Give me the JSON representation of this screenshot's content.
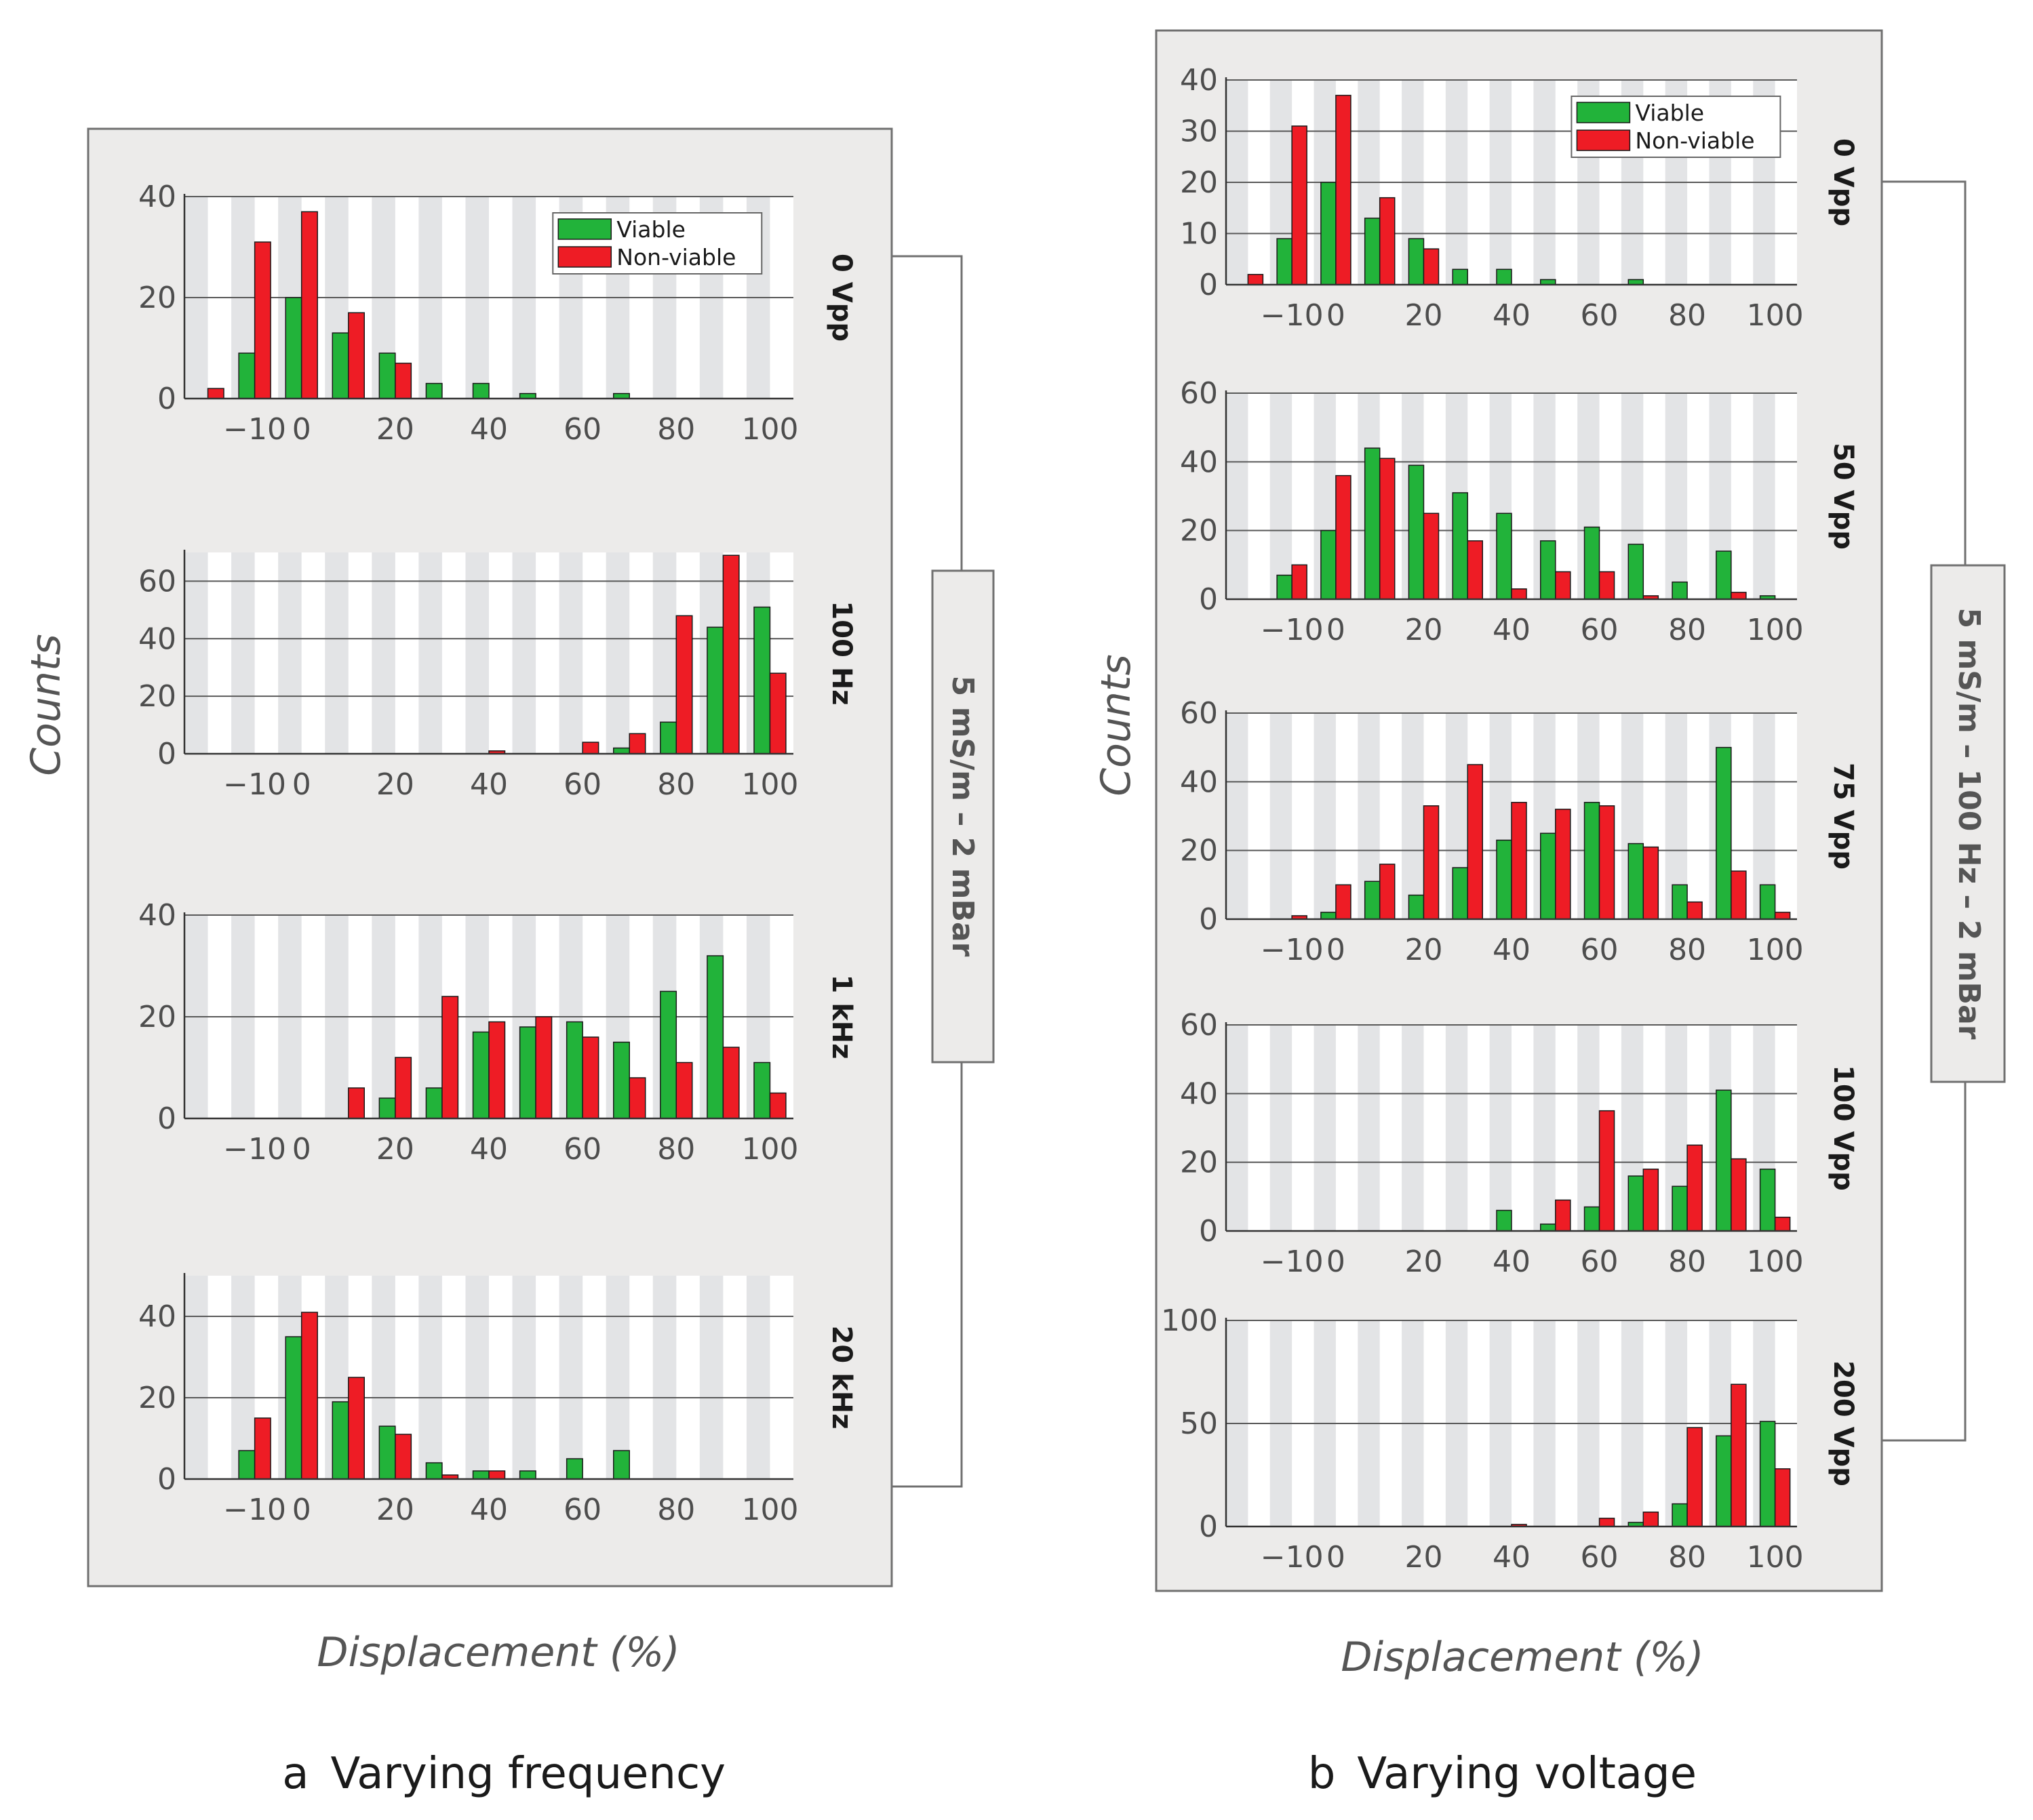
{
  "colors": {
    "viable": "#22b33a",
    "nonviable": "#ee1c25",
    "panel_bg": "#ecebea",
    "plot_bg": "#ffffff",
    "stripe": "#e3e4e6",
    "grid": "#595959",
    "frame": "#707070"
  },
  "legend": {
    "viable": "Viable",
    "nonviable": "Non-viable"
  },
  "x_ticks": [
    "−10",
    "0",
    "20",
    "40",
    "60",
    "80",
    "100"
  ],
  "left_group": {
    "caption_letter": "a",
    "caption": "Varying frequency",
    "y_title": "Counts",
    "x_title": "Displacement (%)",
    "condition": "5 mS/m – 2 mBar"
  },
  "right_group": {
    "caption_letter": "b",
    "caption": "Varying voltage",
    "y_title": "Counts",
    "x_title": "Displacement (%)",
    "condition": "5 mS/m – 100 Hz – 2 mBar"
  },
  "chart_data": [
    {
      "type": "bar",
      "group": "a",
      "title": "0 Vpp",
      "xlabel": "Displacement (%)",
      "ylabel": "Counts",
      "x": [
        -20,
        -10,
        0,
        10,
        20,
        30,
        40,
        50,
        60,
        70,
        80,
        90,
        100
      ],
      "ylim": [
        0,
        40
      ],
      "yticks": [
        0,
        20,
        40
      ],
      "yticks_labels": [
        "0",
        "20",
        "40"
      ],
      "legend": true,
      "series": [
        {
          "name": "Viable",
          "values": [
            0,
            9,
            20,
            13,
            9,
            3,
            3,
            1,
            0,
            1,
            0,
            0,
            0
          ]
        },
        {
          "name": "Non-viable",
          "values": [
            2,
            31,
            37,
            17,
            7,
            0,
            0,
            0,
            0,
            0,
            0,
            0,
            0
          ]
        }
      ]
    },
    {
      "type": "bar",
      "group": "a",
      "title": "100 Hz",
      "xlabel": "Displacement (%)",
      "ylabel": "Counts",
      "x": [
        -20,
        -10,
        0,
        10,
        20,
        30,
        40,
        50,
        60,
        70,
        80,
        90,
        100
      ],
      "ylim": [
        0,
        70
      ],
      "yticks": [
        0,
        20,
        40,
        60
      ],
      "yticks_labels": [
        "0",
        "20",
        "40",
        "60"
      ],
      "legend": false,
      "series": [
        {
          "name": "Viable",
          "values": [
            0,
            0,
            0,
            0,
            0,
            0,
            0,
            0,
            0,
            2,
            11,
            44,
            51
          ]
        },
        {
          "name": "Non-viable",
          "values": [
            0,
            0,
            0,
            0,
            0,
            0,
            1,
            0,
            4,
            7,
            48,
            69,
            28
          ]
        }
      ]
    },
    {
      "type": "bar",
      "group": "a",
      "title": "1 kHz",
      "xlabel": "Displacement (%)",
      "ylabel": "Counts",
      "x": [
        -20,
        -10,
        0,
        10,
        20,
        30,
        40,
        50,
        60,
        70,
        80,
        90,
        100
      ],
      "ylim": [
        0,
        40
      ],
      "yticks": [
        0,
        20,
        40
      ],
      "yticks_labels": [
        "0",
        "20",
        "40"
      ],
      "legend": false,
      "series": [
        {
          "name": "Viable",
          "values": [
            0,
            0,
            0,
            0,
            4,
            6,
            17,
            18,
            19,
            15,
            25,
            32,
            11
          ]
        },
        {
          "name": "Non-viable",
          "values": [
            0,
            0,
            0,
            6,
            12,
            24,
            19,
            20,
            16,
            8,
            11,
            14,
            5
          ]
        }
      ]
    },
    {
      "type": "bar",
      "group": "a",
      "title": "20 kHz",
      "xlabel": "Displacement (%)",
      "ylabel": "Counts",
      "x": [
        -20,
        -10,
        0,
        10,
        20,
        30,
        40,
        50,
        60,
        70,
        80,
        90,
        100
      ],
      "ylim": [
        0,
        50
      ],
      "yticks": [
        0,
        20,
        40
      ],
      "yticks_labels": [
        "0",
        "20",
        "40"
      ],
      "legend": false,
      "series": [
        {
          "name": "Viable",
          "values": [
            0,
            7,
            35,
            19,
            13,
            4,
            2,
            2,
            5,
            7,
            0,
            0,
            0
          ]
        },
        {
          "name": "Non-viable",
          "values": [
            0,
            15,
            41,
            25,
            11,
            1,
            2,
            0,
            0,
            0,
            0,
            0,
            0
          ]
        }
      ]
    },
    {
      "type": "bar",
      "group": "b",
      "title": "0 Vpp",
      "xlabel": "Displacement (%)",
      "ylabel": "Counts",
      "x": [
        -20,
        -10,
        0,
        10,
        20,
        30,
        40,
        50,
        60,
        70,
        80,
        90,
        100
      ],
      "ylim": [
        0,
        40
      ],
      "yticks": [
        0,
        10,
        20,
        30,
        40
      ],
      "yticks_labels": [
        "0",
        "10",
        "20",
        "30",
        "40"
      ],
      "legend": true,
      "series": [
        {
          "name": "Viable",
          "values": [
            0,
            9,
            20,
            13,
            9,
            3,
            3,
            1,
            0,
            1,
            0,
            0,
            0
          ]
        },
        {
          "name": "Non-viable",
          "values": [
            2,
            31,
            37,
            17,
            7,
            0,
            0,
            0,
            0,
            0,
            0,
            0,
            0
          ]
        }
      ]
    },
    {
      "type": "bar",
      "group": "b",
      "title": "50 Vpp",
      "xlabel": "Displacement (%)",
      "ylabel": "Counts",
      "x": [
        -20,
        -10,
        0,
        10,
        20,
        30,
        40,
        50,
        60,
        70,
        80,
        90,
        100
      ],
      "ylim": [
        0,
        60
      ],
      "yticks": [
        0,
        20,
        40,
        60
      ],
      "yticks_labels": [
        "0",
        "20",
        "40",
        "60"
      ],
      "legend": false,
      "series": [
        {
          "name": "Viable",
          "values": [
            0,
            7,
            20,
            44,
            39,
            31,
            25,
            17,
            21,
            16,
            5,
            14,
            1
          ]
        },
        {
          "name": "Non-viable",
          "values": [
            0,
            10,
            36,
            41,
            25,
            17,
            3,
            8,
            8,
            1,
            0,
            2,
            0
          ]
        }
      ]
    },
    {
      "type": "bar",
      "group": "b",
      "title": "75 Vpp",
      "xlabel": "Displacement (%)",
      "ylabel": "Counts",
      "x": [
        -20,
        -10,
        0,
        10,
        20,
        30,
        40,
        50,
        60,
        70,
        80,
        90,
        100
      ],
      "ylim": [
        0,
        60
      ],
      "yticks": [
        0,
        20,
        40,
        60
      ],
      "yticks_labels": [
        "0",
        "20",
        "40",
        "60"
      ],
      "legend": false,
      "series": [
        {
          "name": "Viable",
          "values": [
            0,
            0,
            2,
            11,
            7,
            15,
            23,
            25,
            34,
            22,
            10,
            50,
            10
          ]
        },
        {
          "name": "Non-viable",
          "values": [
            0,
            1,
            10,
            16,
            33,
            45,
            34,
            32,
            33,
            21,
            5,
            14,
            2
          ]
        }
      ]
    },
    {
      "type": "bar",
      "group": "b",
      "title": "100 Vpp",
      "xlabel": "Displacement (%)",
      "ylabel": "Counts",
      "x": [
        -20,
        -10,
        0,
        10,
        20,
        30,
        40,
        50,
        60,
        70,
        80,
        90,
        100
      ],
      "ylim": [
        0,
        60
      ],
      "yticks": [
        0,
        20,
        40,
        60
      ],
      "yticks_labels": [
        "0",
        "20",
        "40",
        "60"
      ],
      "legend": false,
      "series": [
        {
          "name": "Viable",
          "values": [
            0,
            0,
            0,
            0,
            0,
            0,
            6,
            2,
            7,
            16,
            13,
            41,
            18
          ]
        },
        {
          "name": "Non-viable",
          "values": [
            0,
            0,
            0,
            0,
            0,
            0,
            0,
            9,
            35,
            18,
            25,
            21,
            4
          ]
        }
      ]
    },
    {
      "type": "bar",
      "group": "b",
      "title": "200 Vpp",
      "xlabel": "Displacement (%)",
      "ylabel": "Counts",
      "x": [
        -20,
        -10,
        0,
        10,
        20,
        30,
        40,
        50,
        60,
        70,
        80,
        90,
        100
      ],
      "ylim": [
        0,
        100
      ],
      "yticks": [
        0,
        50,
        100
      ],
      "yticks_labels": [
        "0",
        "50",
        "100"
      ],
      "legend": false,
      "series": [
        {
          "name": "Viable",
          "values": [
            0,
            0,
            0,
            0,
            0,
            0,
            0,
            0,
            0,
            2,
            11,
            44,
            51
          ]
        },
        {
          "name": "Non-viable",
          "values": [
            0,
            0,
            0,
            0,
            0,
            0,
            1,
            0,
            4,
            7,
            48,
            69,
            28
          ]
        }
      ]
    }
  ]
}
